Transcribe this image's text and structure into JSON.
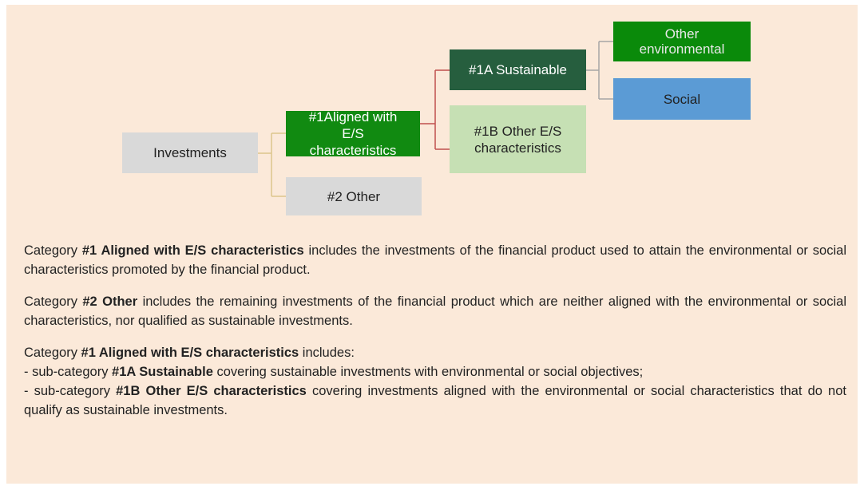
{
  "nodes": [
    {
      "label": "Investments"
    },
    {
      "label": "#1Aligned with E/S characteristics"
    },
    {
      "label": "#2 Other"
    },
    {
      "label": "#1A Sustainable"
    },
    {
      "label": "#1B Other E/S characteristics"
    },
    {
      "label": "Other environmental"
    },
    {
      "label": "Social"
    }
  ],
  "paragraphs": [
    {
      "lines": [
        [
          {
            "text": "Category "
          },
          {
            "text": "#1 Aligned with E/S characteristics",
            "bold": true
          },
          {
            "text": " includes the investments of the financial product used to attain the environmental or social characteristics promoted by the financial product."
          }
        ]
      ]
    },
    {
      "lines": [
        [
          {
            "text": "Category "
          },
          {
            "text": "#2 Other",
            "bold": true
          },
          {
            "text": " includes the remaining investments of the financial product which are neither aligned with the environmental or social characteristics, nor qualified as sustainable investments."
          }
        ]
      ]
    },
    {
      "lines": [
        [
          {
            "text": "Category "
          },
          {
            "text": "#1 Aligned with E/S characteristics",
            "bold": true
          },
          {
            "text": " includes:"
          }
        ],
        [
          {
            "text": "- sub-category "
          },
          {
            "text": "#1A Sustainable",
            "bold": true
          },
          {
            "text": " covering sustainable investments with environmental or social objectives;"
          }
        ],
        [
          {
            "text": "- sub-category "
          },
          {
            "text": "#1B Other E/S characteristics",
            "bold": true
          },
          {
            "text": " covering investments aligned with the environmental or social characteristics that do not qualify as sustainable investments."
          }
        ]
      ]
    }
  ]
}
